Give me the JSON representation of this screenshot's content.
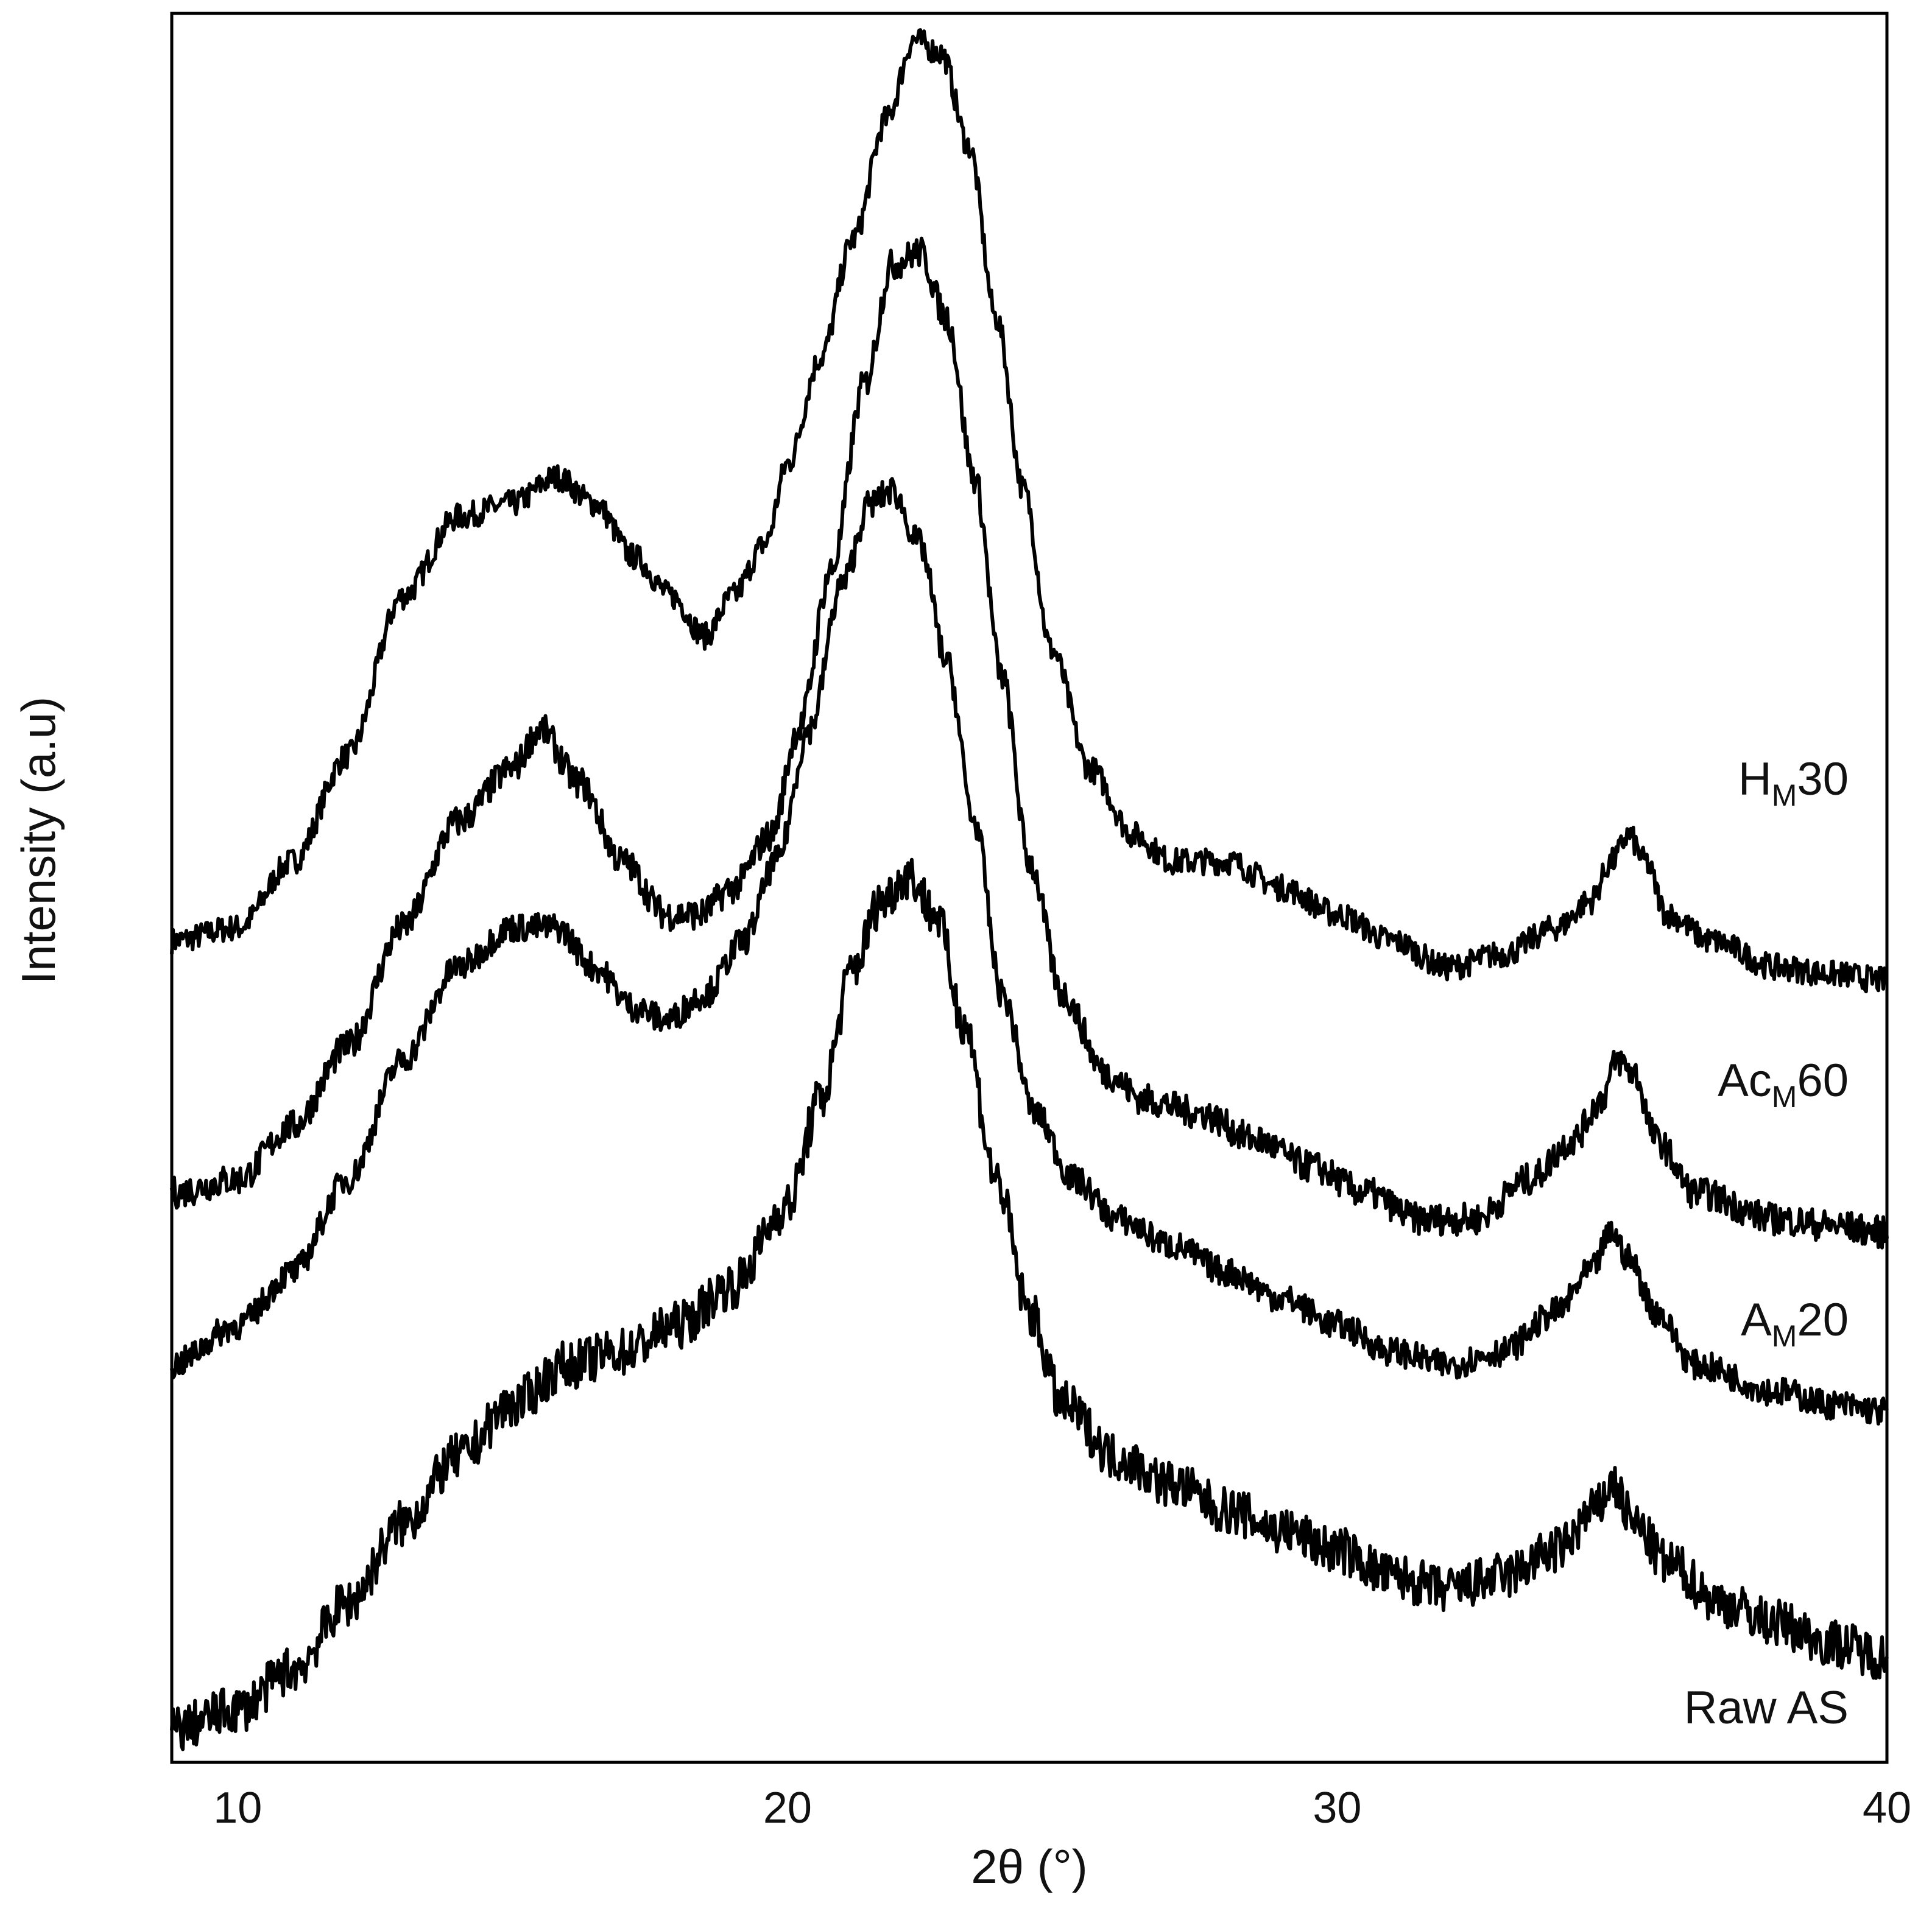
{
  "chart_data": {
    "type": "line",
    "title": "",
    "xlabel": "2θ (°)",
    "ylabel": "Intensity (a.u)",
    "xlim": [
      8.8,
      40
    ],
    "x_ticks": [
      10,
      20,
      30,
      40
    ],
    "y_ticks": [],
    "grid": false,
    "legend": "none",
    "line_color": "#000000",
    "series": [
      {
        "name": "HM30",
        "label_parts": [
          "H",
          "M",
          "30"
        ],
        "offset": 0.56,
        "points": [
          [
            8.8,
            0.6
          ],
          [
            10,
            0.61
          ],
          [
            11,
            0.66
          ],
          [
            12,
            0.74
          ],
          [
            13,
            0.86
          ],
          [
            14,
            0.92
          ],
          [
            15,
            0.93
          ],
          [
            15.8,
            0.95
          ],
          [
            16.5,
            0.93
          ],
          [
            17.2,
            0.89
          ],
          [
            17.9,
            0.86
          ],
          [
            18.5,
            0.83
          ],
          [
            19.0,
            0.86
          ],
          [
            19.6,
            0.9
          ],
          [
            20.0,
            0.96
          ],
          [
            20.6,
            1.04
          ],
          [
            21.2,
            1.13
          ],
          [
            21.8,
            1.22
          ],
          [
            22.3,
            1.28
          ],
          [
            22.8,
            1.27
          ],
          [
            23.3,
            1.2
          ],
          [
            23.8,
            1.07
          ],
          [
            24.3,
            0.94
          ],
          [
            24.8,
            0.82
          ],
          [
            25.5,
            0.73
          ],
          [
            26.3,
            0.68
          ],
          [
            27.0,
            0.66
          ],
          [
            28.0,
            0.66
          ],
          [
            29.0,
            0.64
          ],
          [
            30.0,
            0.62
          ],
          [
            31.0,
            0.6
          ],
          [
            32.0,
            0.58
          ],
          [
            33.0,
            0.59
          ],
          [
            34.0,
            0.61
          ],
          [
            34.6,
            0.63
          ],
          [
            35.0,
            0.66
          ],
          [
            35.3,
            0.68
          ],
          [
            35.6,
            0.66
          ],
          [
            36.0,
            0.62
          ],
          [
            36.8,
            0.6
          ],
          [
            38,
            0.58
          ],
          [
            39,
            0.575
          ],
          [
            40,
            0.57
          ]
        ]
      },
      {
        "name": "AcM60",
        "label_parts": [
          "Ac",
          "M",
          "60"
        ],
        "offset": 0.37,
        "points": [
          [
            8.8,
            0.41
          ],
          [
            10,
            0.42
          ],
          [
            11,
            0.46
          ],
          [
            12,
            0.52
          ],
          [
            13,
            0.61
          ],
          [
            14,
            0.69
          ],
          [
            15,
            0.73
          ],
          [
            15.5,
            0.76
          ],
          [
            16.2,
            0.72
          ],
          [
            17.0,
            0.66
          ],
          [
            17.8,
            0.62
          ],
          [
            18.4,
            0.62
          ],
          [
            19.0,
            0.64
          ],
          [
            19.7,
            0.68
          ],
          [
            20.2,
            0.76
          ],
          [
            20.8,
            0.88
          ],
          [
            21.4,
            1.02
          ],
          [
            21.9,
            1.11
          ],
          [
            22.4,
            1.12
          ],
          [
            22.9,
            1.07
          ],
          [
            23.4,
            0.95
          ],
          [
            23.9,
            0.8
          ],
          [
            24.4,
            0.66
          ],
          [
            25.0,
            0.56
          ],
          [
            25.8,
            0.5
          ],
          [
            26.5,
            0.48
          ],
          [
            27.5,
            0.47
          ],
          [
            28.5,
            0.45
          ],
          [
            29.5,
            0.43
          ],
          [
            30.5,
            0.41
          ],
          [
            31.5,
            0.39
          ],
          [
            32.5,
            0.39
          ],
          [
            33.5,
            0.42
          ],
          [
            34.3,
            0.45
          ],
          [
            34.8,
            0.48
          ],
          [
            35.1,
            0.51
          ],
          [
            35.4,
            0.5
          ],
          [
            35.8,
            0.45
          ],
          [
            36.5,
            0.41
          ],
          [
            38,
            0.39
          ],
          [
            39,
            0.385
          ],
          [
            40,
            0.38
          ]
        ]
      },
      {
        "name": "AM20",
        "label_parts": [
          "A",
          "M",
          "20"
        ],
        "offset": 0.23,
        "points": [
          [
            8.8,
            0.28
          ],
          [
            10,
            0.31
          ],
          [
            11,
            0.35
          ],
          [
            12,
            0.42
          ],
          [
            13,
            0.51
          ],
          [
            14,
            0.58
          ],
          [
            15,
            0.61
          ],
          [
            15.8,
            0.61
          ],
          [
            16.5,
            0.58
          ],
          [
            17.2,
            0.55
          ],
          [
            17.8,
            0.54
          ],
          [
            18.5,
            0.56
          ],
          [
            19.2,
            0.6
          ],
          [
            19.8,
            0.66
          ],
          [
            20.4,
            0.76
          ],
          [
            21.0,
            0.87
          ],
          [
            21.5,
            0.93
          ],
          [
            21.9,
            0.94
          ],
          [
            22.4,
            0.9
          ],
          [
            22.9,
            0.81
          ],
          [
            23.4,
            0.69
          ],
          [
            23.9,
            0.56
          ],
          [
            24.5,
            0.47
          ],
          [
            25.2,
            0.42
          ],
          [
            26.0,
            0.39
          ],
          [
            27.0,
            0.37
          ],
          [
            28.0,
            0.35
          ],
          [
            29.0,
            0.33
          ],
          [
            30.0,
            0.31
          ],
          [
            31.0,
            0.29
          ],
          [
            32.0,
            0.28
          ],
          [
            33.0,
            0.29
          ],
          [
            34.0,
            0.32
          ],
          [
            34.6,
            0.35
          ],
          [
            35.0,
            0.38
          ],
          [
            35.3,
            0.36
          ],
          [
            35.8,
            0.32
          ],
          [
            36.5,
            0.28
          ],
          [
            38,
            0.26
          ],
          [
            39,
            0.25
          ],
          [
            40,
            0.245
          ]
        ]
      },
      {
        "name": "Raw AS",
        "label_parts": [
          "Raw AS",
          "",
          ""
        ],
        "offset": 0.03,
        "points": [
          [
            8.8,
            0.005
          ],
          [
            10,
            0.02
          ],
          [
            11,
            0.05
          ],
          [
            12,
            0.1
          ],
          [
            13,
            0.16
          ],
          [
            14,
            0.21
          ],
          [
            15,
            0.25
          ],
          [
            16,
            0.28
          ],
          [
            17,
            0.29
          ],
          [
            18,
            0.31
          ],
          [
            19,
            0.34
          ],
          [
            20,
            0.4
          ],
          [
            20.6,
            0.48
          ],
          [
            21.2,
            0.58
          ],
          [
            21.7,
            0.63
          ],
          [
            22.2,
            0.65
          ],
          [
            22.7,
            0.62
          ],
          [
            23.2,
            0.54
          ],
          [
            23.8,
            0.42
          ],
          [
            24.4,
            0.32
          ],
          [
            25.0,
            0.25
          ],
          [
            26.0,
            0.21
          ],
          [
            27.0,
            0.19
          ],
          [
            28.0,
            0.17
          ],
          [
            29.0,
            0.155
          ],
          [
            30.0,
            0.14
          ],
          [
            31.0,
            0.12
          ],
          [
            32.0,
            0.11
          ],
          [
            33.0,
            0.12
          ],
          [
            34.0,
            0.14
          ],
          [
            34.7,
            0.17
          ],
          [
            35.0,
            0.19
          ],
          [
            35.4,
            0.16
          ],
          [
            36.0,
            0.13
          ],
          [
            37,
            0.1
          ],
          [
            38,
            0.085
          ],
          [
            39,
            0.07
          ],
          [
            40,
            0.06
          ]
        ]
      }
    ]
  }
}
